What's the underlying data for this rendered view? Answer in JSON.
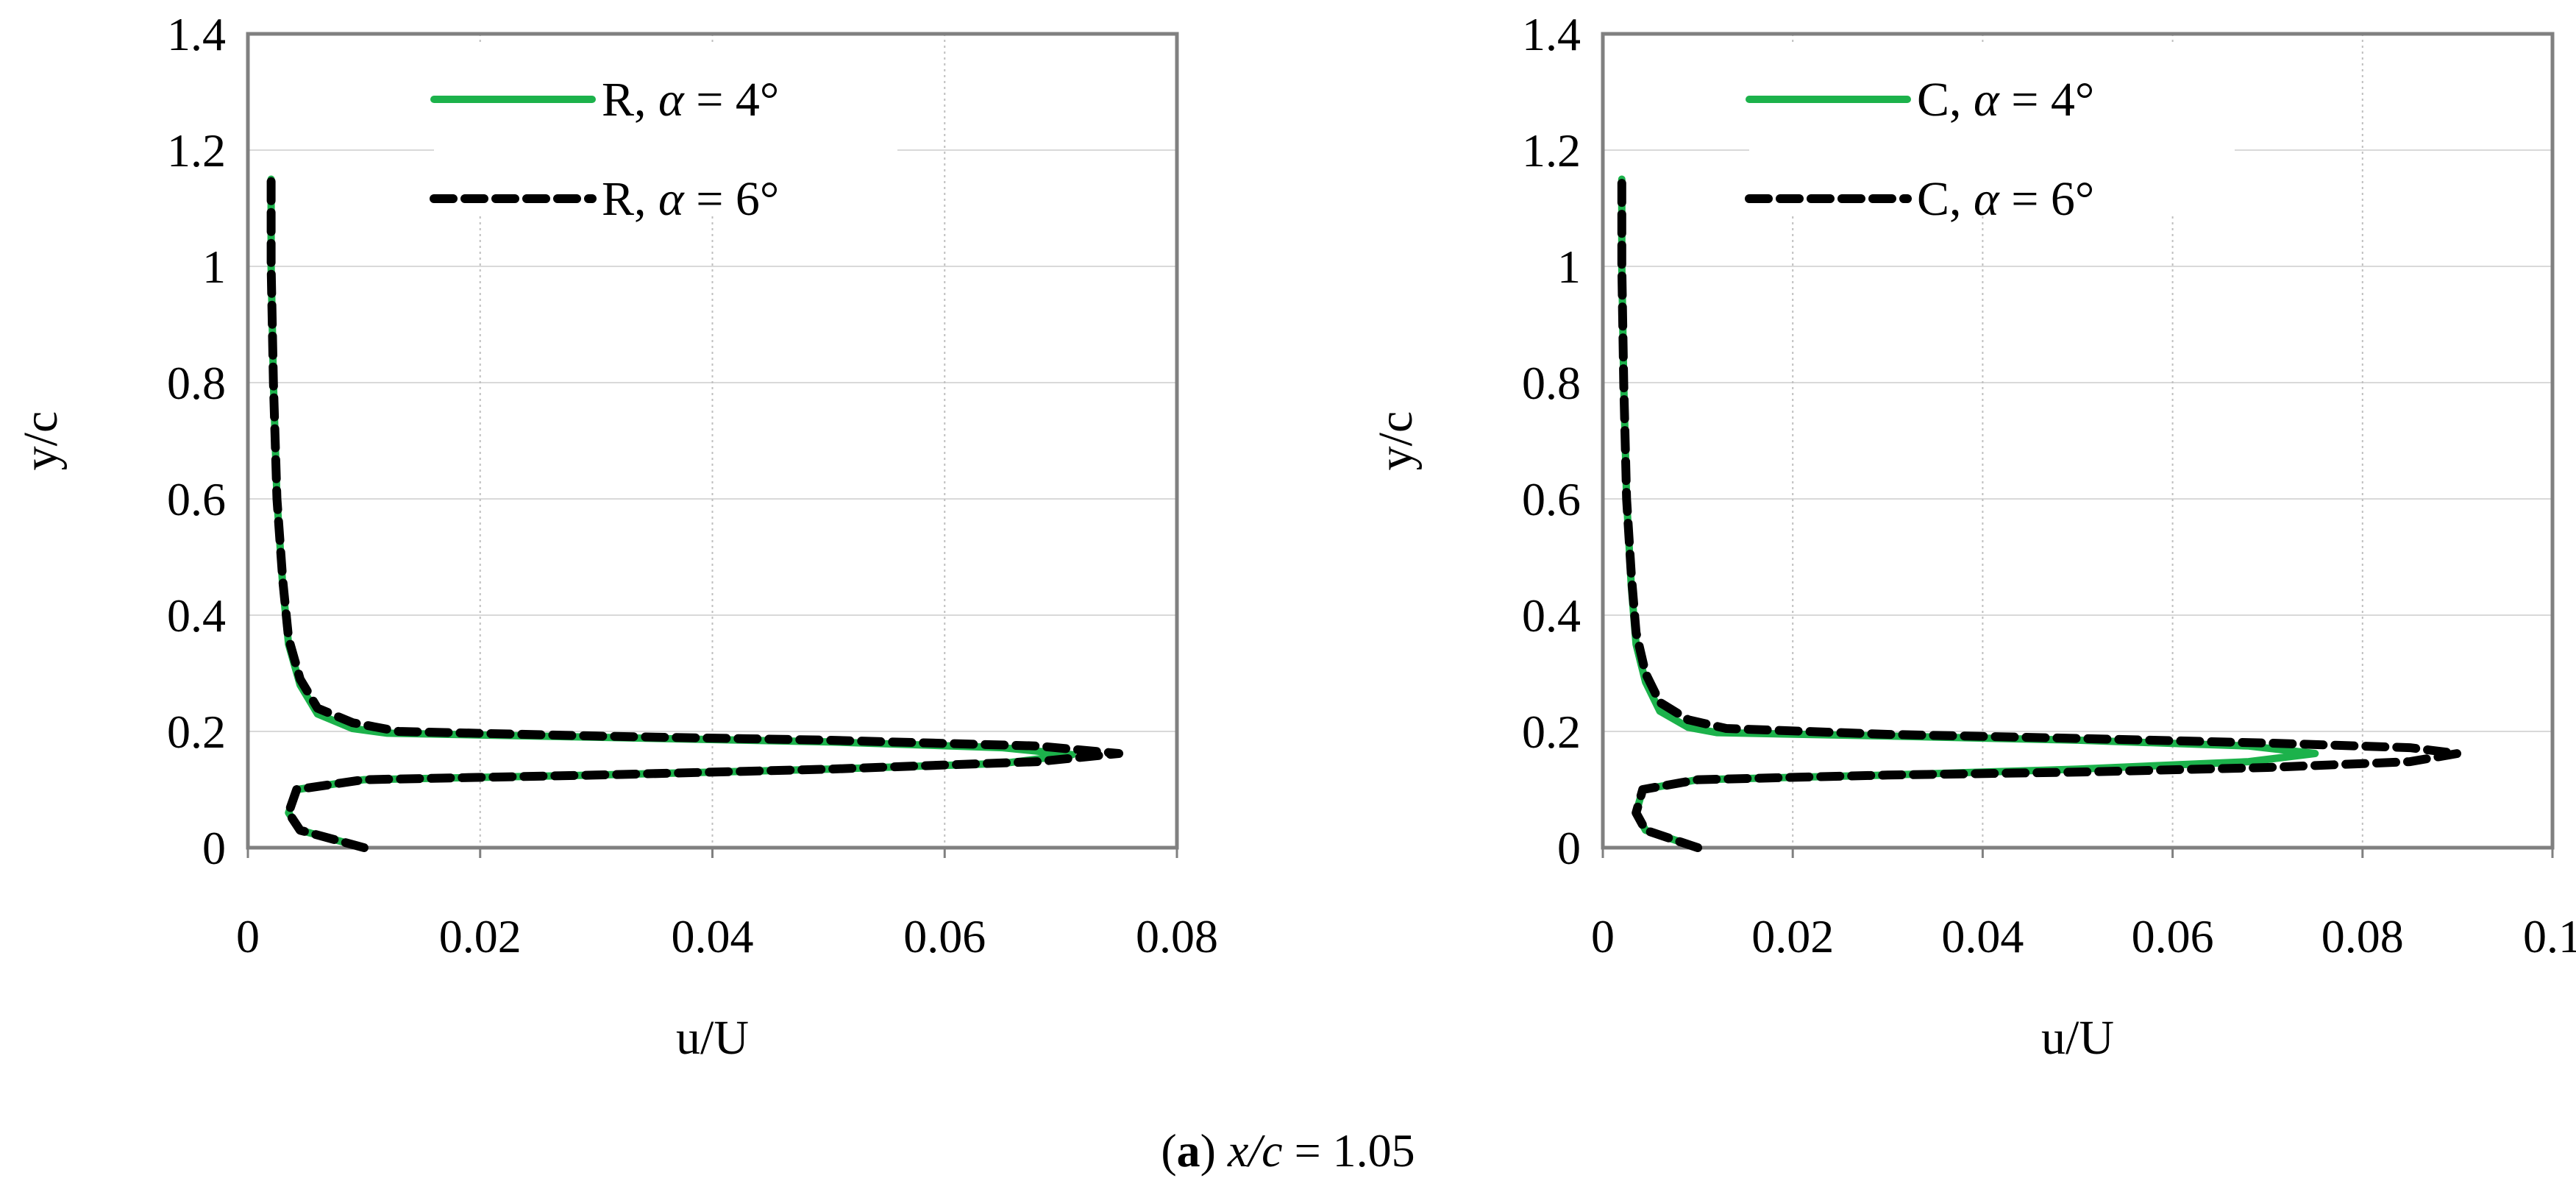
{
  "chart_data": [
    {
      "type": "line",
      "xlabel": "u/U",
      "ylabel": "y/c",
      "xlim": [
        0,
        0.08
      ],
      "ylim": [
        0,
        1.4
      ],
      "xticks": [
        "0",
        "0.02",
        "0.04",
        "0.06",
        "0.08"
      ],
      "yticks": [
        "0",
        "0.2",
        "0.4",
        "0.6",
        "0.8",
        "1",
        "1.2",
        "1.4"
      ],
      "grid": true,
      "legend_position": "top",
      "series": [
        {
          "name": "R, α = 4°",
          "label_prefix": "R, ",
          "label_symbol": "α",
          "label_suffix": " = 4°",
          "style": "solid",
          "color": "#1cb24b",
          "points": [
            [
              0.01,
              0.0
            ],
            [
              0.0045,
              0.03
            ],
            [
              0.0035,
              0.06
            ],
            [
              0.0042,
              0.1
            ],
            [
              0.01,
              0.117
            ],
            [
              0.03,
              0.125
            ],
            [
              0.05,
              0.135
            ],
            [
              0.065,
              0.145
            ],
            [
              0.071,
              0.16
            ],
            [
              0.065,
              0.172
            ],
            [
              0.05,
              0.182
            ],
            [
              0.03,
              0.19
            ],
            [
              0.012,
              0.197
            ],
            [
              0.009,
              0.205
            ],
            [
              0.006,
              0.23
            ],
            [
              0.0045,
              0.28
            ],
            [
              0.0035,
              0.35
            ],
            [
              0.003,
              0.45
            ],
            [
              0.0025,
              0.6
            ],
            [
              0.0022,
              0.8
            ],
            [
              0.002,
              1.0
            ],
            [
              0.002,
              1.15
            ]
          ]
        },
        {
          "name": "R, α = 6°",
          "label_prefix": "R, ",
          "label_symbol": "α",
          "label_suffix": " = 6°",
          "style": "dashed",
          "color": "#000000",
          "points": [
            [
              0.01,
              0.0
            ],
            [
              0.0045,
              0.03
            ],
            [
              0.0035,
              0.06
            ],
            [
              0.0042,
              0.1
            ],
            [
              0.01,
              0.117
            ],
            [
              0.03,
              0.125
            ],
            [
              0.05,
              0.135
            ],
            [
              0.068,
              0.148
            ],
            [
              0.075,
              0.162
            ],
            [
              0.068,
              0.175
            ],
            [
              0.05,
              0.185
            ],
            [
              0.03,
              0.192
            ],
            [
              0.013,
              0.2
            ],
            [
              0.009,
              0.215
            ],
            [
              0.006,
              0.24
            ],
            [
              0.0045,
              0.29
            ],
            [
              0.0035,
              0.36
            ],
            [
              0.003,
              0.46
            ],
            [
              0.0025,
              0.6
            ],
            [
              0.0022,
              0.8
            ],
            [
              0.002,
              1.0
            ],
            [
              0.002,
              1.15
            ]
          ]
        }
      ]
    },
    {
      "type": "line",
      "xlabel": "u/U",
      "ylabel": "y/c",
      "xlim": [
        0,
        0.1
      ],
      "ylim": [
        0,
        1.4
      ],
      "xticks": [
        "0",
        "0.02",
        "0.04",
        "0.06",
        "0.08",
        "0.1"
      ],
      "yticks": [
        "0",
        "0.2",
        "0.4",
        "0.6",
        "0.8",
        "1",
        "1.2",
        "1.4"
      ],
      "grid": true,
      "legend_position": "top",
      "series": [
        {
          "name": "C, α = 4°",
          "label_prefix": "C, ",
          "label_symbol": "α",
          "label_suffix": " = 4°",
          "style": "solid",
          "color": "#1cb24b",
          "points": [
            [
              0.01,
              0.0
            ],
            [
              0.0045,
              0.03
            ],
            [
              0.0035,
              0.06
            ],
            [
              0.0042,
              0.1
            ],
            [
              0.01,
              0.117
            ],
            [
              0.03,
              0.125
            ],
            [
              0.05,
              0.135
            ],
            [
              0.068,
              0.148
            ],
            [
              0.075,
              0.162
            ],
            [
              0.068,
              0.175
            ],
            [
              0.05,
              0.185
            ],
            [
              0.03,
              0.192
            ],
            [
              0.012,
              0.198
            ],
            [
              0.009,
              0.207
            ],
            [
              0.006,
              0.235
            ],
            [
              0.0045,
              0.285
            ],
            [
              0.0035,
              0.35
            ],
            [
              0.003,
              0.45
            ],
            [
              0.0025,
              0.6
            ],
            [
              0.0022,
              0.8
            ],
            [
              0.002,
              1.0
            ],
            [
              0.002,
              1.15
            ]
          ]
        },
        {
          "name": "C, α = 6°",
          "label_prefix": "C, ",
          "label_symbol": "α",
          "label_suffix": " = 6°",
          "style": "dashed",
          "color": "#000000",
          "points": [
            [
              0.01,
              0.0
            ],
            [
              0.0045,
              0.03
            ],
            [
              0.0035,
              0.06
            ],
            [
              0.0042,
              0.1
            ],
            [
              0.01,
              0.117
            ],
            [
              0.03,
              0.125
            ],
            [
              0.05,
              0.13
            ],
            [
              0.07,
              0.138
            ],
            [
              0.085,
              0.148
            ],
            [
              0.09,
              0.162
            ],
            [
              0.085,
              0.172
            ],
            [
              0.07,
              0.18
            ],
            [
              0.05,
              0.188
            ],
            [
              0.03,
              0.195
            ],
            [
              0.013,
              0.205
            ],
            [
              0.009,
              0.22
            ],
            [
              0.006,
              0.25
            ],
            [
              0.0045,
              0.3
            ],
            [
              0.0035,
              0.37
            ],
            [
              0.003,
              0.47
            ],
            [
              0.0025,
              0.6
            ],
            [
              0.0022,
              0.8
            ],
            [
              0.002,
              1.0
            ],
            [
              0.002,
              1.15
            ]
          ]
        }
      ]
    }
  ],
  "caption": {
    "letter": "a",
    "var": "x/c",
    "value": " = 1.05"
  }
}
